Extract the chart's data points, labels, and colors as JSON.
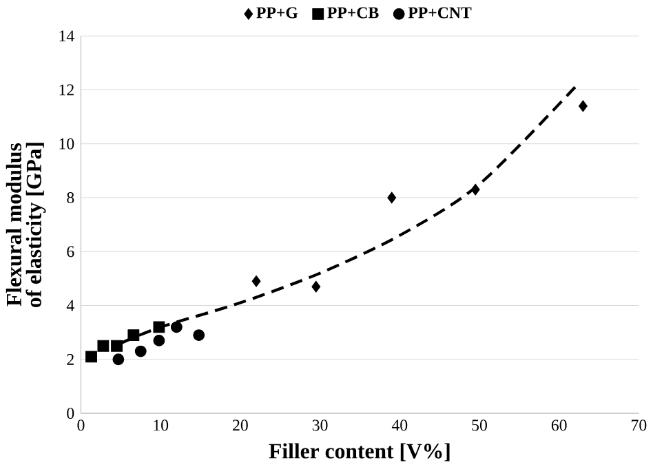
{
  "chart_data": {
    "type": "scatter",
    "xlabel": "Filler content [V%]",
    "ylabel": "Flexural modulus of elasticity [GPa]",
    "xlim": [
      0,
      70
    ],
    "xticks": [
      0,
      10,
      20,
      30,
      40,
      50,
      60,
      70
    ],
    "ylim": [
      0,
      14
    ],
    "yticks": [
      0,
      2,
      4,
      6,
      8,
      10,
      12,
      14
    ],
    "grid": "y",
    "legend": "top",
    "series": [
      {
        "name": "PP+G",
        "color": "#000000",
        "marker": "diamond",
        "x": [
          22,
          29.5,
          39,
          49.5,
          63
        ],
        "values": [
          4.9,
          4.7,
          8.0,
          8.3,
          11.4
        ]
      },
      {
        "name": "PP+CB",
        "color": "#000000",
        "marker": "square",
        "x": [
          1.3,
          2.8,
          4.5,
          6.6,
          9.8
        ],
        "values": [
          2.1,
          2.5,
          2.5,
          2.9,
          3.2
        ]
      },
      {
        "name": "PP+CNT",
        "color": "#000000",
        "marker": "circle",
        "x": [
          4.7,
          7.5,
          9.8,
          12,
          14.8
        ],
        "values": [
          2.0,
          2.3,
          2.7,
          3.2,
          2.9
        ]
      },
      {
        "type": "line",
        "color": "#000000",
        "line_style": "dashed",
        "marker": "none",
        "x": [
          5,
          10,
          20,
          30,
          40,
          50,
          62
        ],
        "values": [
          2.6,
          3.2,
          4.1,
          5.2,
          6.6,
          8.5,
          12.1
        ]
      }
    ]
  }
}
